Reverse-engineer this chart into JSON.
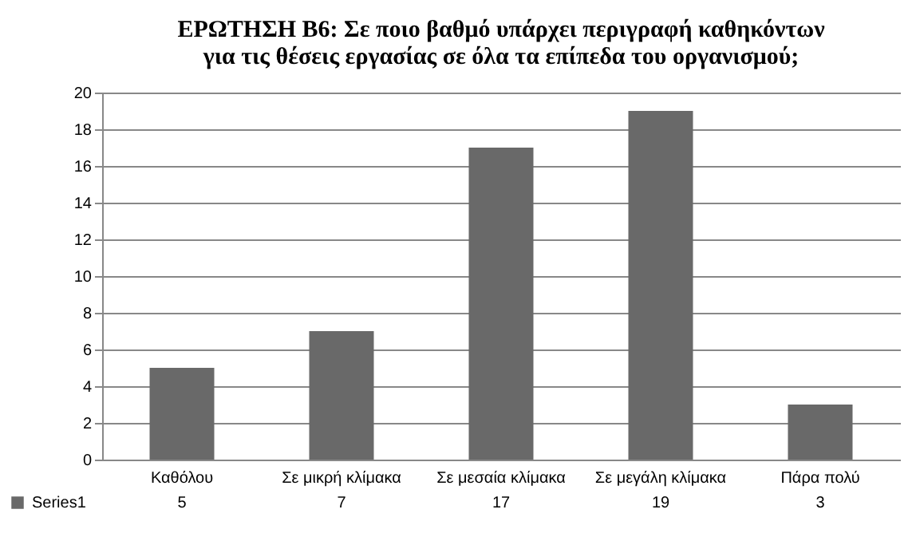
{
  "chart_data": {
    "type": "bar",
    "title": "ΕΡΩΤΗΣΗ Β6: Σε ποιο βαθμό υπάρχει περιγραφή καθηκόντων\nγια τις θέσεις εργασίας σε όλα τα επίπεδα του οργανισμού;",
    "categories": [
      "Καθόλου",
      "Σε μικρή κλίμακα",
      "Σε μεσαία κλίμακα",
      "Σε μεγάλη κλίμακα",
      "Πάρα πολύ"
    ],
    "series": [
      {
        "name": "Series1",
        "color": "#696969",
        "values": [
          5,
          7,
          17,
          19,
          3
        ]
      }
    ],
    "ylim": [
      0,
      20
    ],
    "yticks": [
      0,
      2,
      4,
      6,
      8,
      10,
      12,
      14,
      16,
      18,
      20
    ],
    "grid": true,
    "legend": "bottom left",
    "data_labels": true
  }
}
